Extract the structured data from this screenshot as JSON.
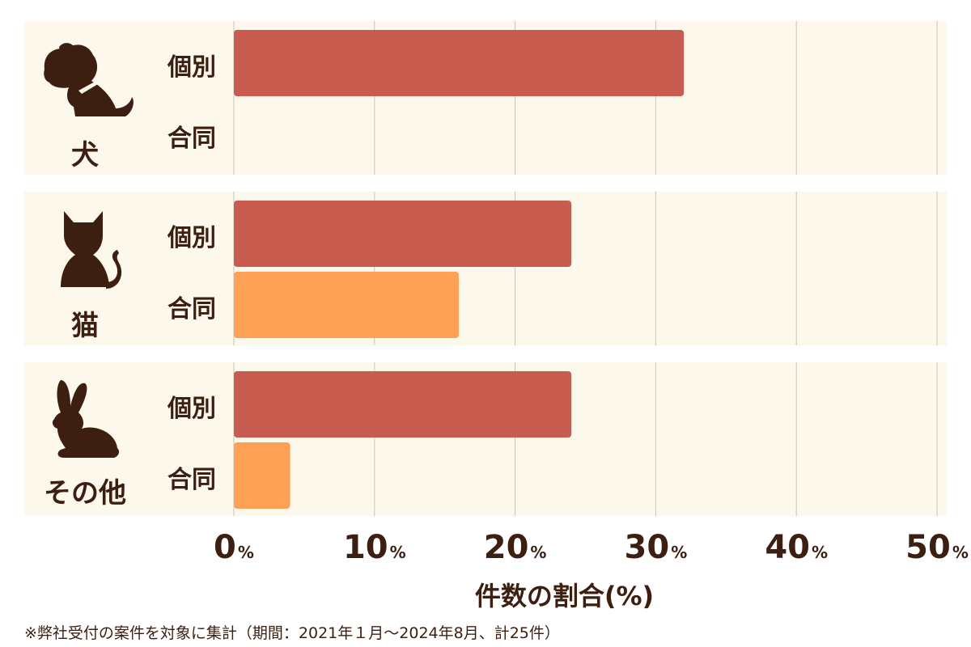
{
  "chart_data": {
    "type": "bar",
    "orientation": "horizontal",
    "groups": [
      {
        "name": "犬",
        "icon": "dog-icon",
        "bars": [
          {
            "label": "個別",
            "value": 32
          },
          {
            "label": "合同",
            "value": 0
          }
        ]
      },
      {
        "name": "猫",
        "icon": "cat-icon",
        "bars": [
          {
            "label": "個別",
            "value": 24
          },
          {
            "label": "合同",
            "value": 16
          }
        ]
      },
      {
        "name": "その他",
        "icon": "rabbit-icon",
        "bars": [
          {
            "label": "個別",
            "value": 24
          },
          {
            "label": "合同",
            "value": 4
          }
        ]
      }
    ],
    "xlim": [
      0,
      50
    ],
    "xticks": [
      0,
      10,
      20,
      30,
      40,
      50
    ],
    "tick_unit": "%",
    "xlabel": "件数の割合(%)",
    "grid": true,
    "colors": {
      "個別": "#c85c4e",
      "合同": "#fea157",
      "panel": "#fcf8ec",
      "grid": "#c9c4b8",
      "text": "#3d1f12"
    }
  },
  "footnote": "※弊社受付の案件を対象に集計（期間：2021年１月〜2024年8月、計25件）"
}
